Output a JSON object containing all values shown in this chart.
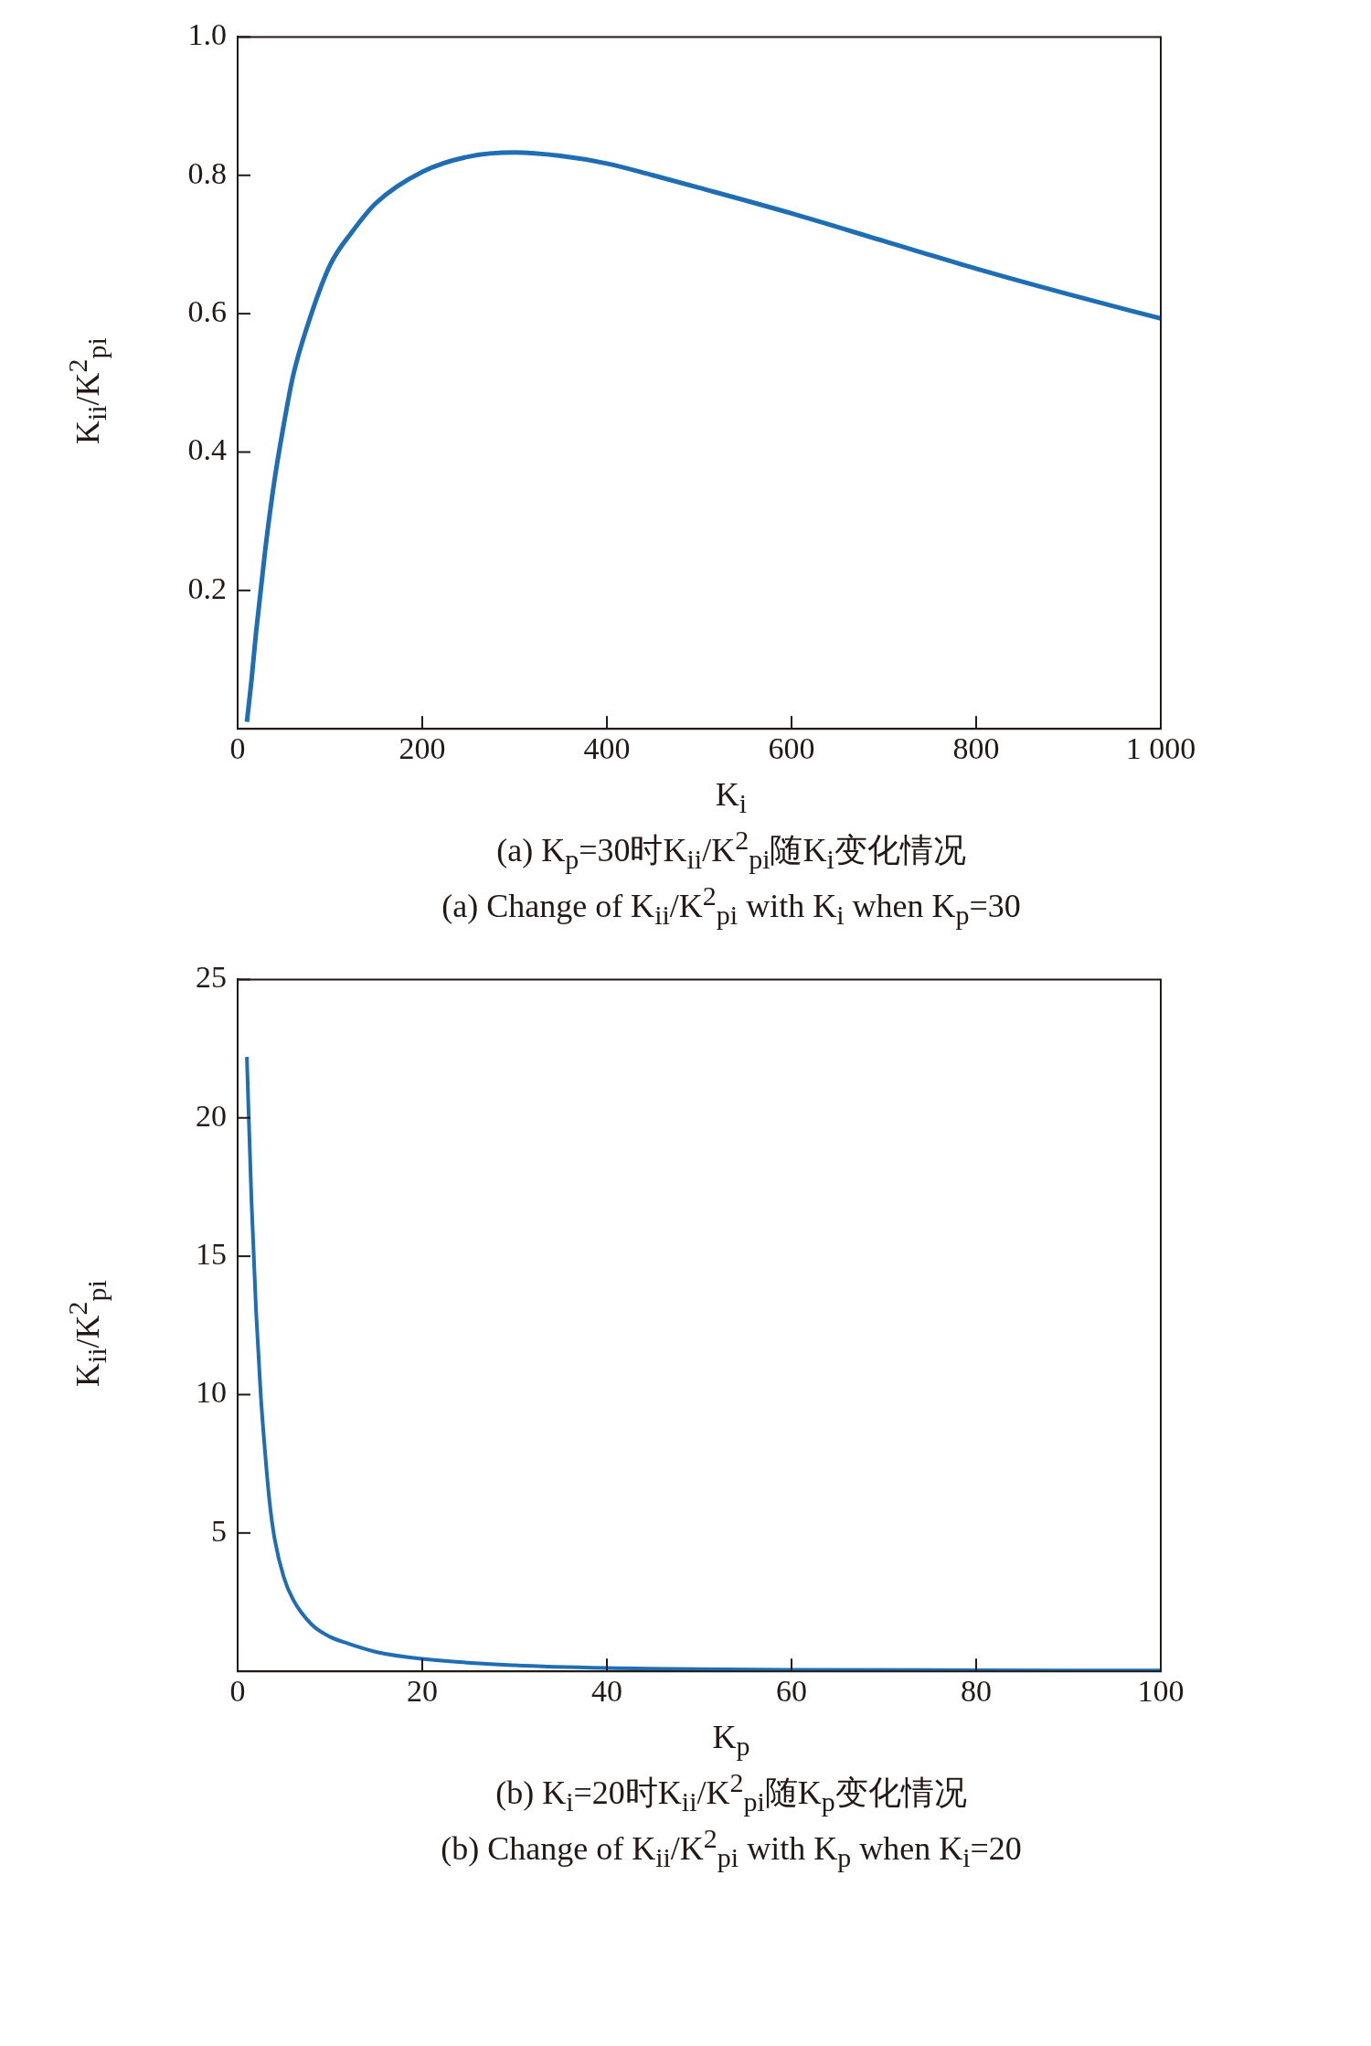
{
  "chart_data": [
    {
      "type": "line",
      "xlabel": "K$_{i}$",
      "ylabel": "K$_{ii}$/K$^{2}$$_{pi}$",
      "annotations": [
        "(a) K$_{p}$=30时K$_{ii}$/K$^{2}$$_{pi}$随K$_{i}$变化情况",
        "(a) Change of K$_{ii}$/K$^{2}$$_{pi}$ with K$_{i}$ when K$_{p}$=30"
      ],
      "series": [
        {
          "color": "#1f6db3",
          "x": [
            10,
            15,
            20,
            30,
            40,
            50,
            60,
            75,
            100,
            125,
            150,
            200,
            250,
            300,
            350,
            400,
            450,
            500,
            600,
            700,
            800,
            900,
            1000
          ],
          "values": [
            0.01,
            0.07,
            0.14,
            0.26,
            0.36,
            0.44,
            0.51,
            0.58,
            0.67,
            0.72,
            0.76,
            0.805,
            0.827,
            0.833,
            0.828,
            0.817,
            0.8,
            0.782,
            0.745,
            0.705,
            0.665,
            0.628,
            0.593
          ]
        }
      ],
      "xlim": [
        0,
        1000
      ],
      "xticks": [
        0,
        200,
        400,
        600,
        800,
        {
          "value": 1000,
          "label": "1 000"
        }
      ],
      "ylim": [
        0,
        1
      ],
      "yticks": [
        0.2,
        0.4,
        0.6,
        0.8,
        {
          "value": 1,
          "label": "1.0"
        }
      ],
      "grid": false,
      "legend": false,
      "marker": "none",
      "line_style": "solid"
    },
    {
      "type": "line",
      "xlabel": "K$_{p}$",
      "ylabel": "K$_{ii}$/K$^{2}$$_{pi}$",
      "annotations": [
        "(b) K$_{i}$=20时K$_{ii}$/K$^{2}$$_{pi}$随K$_{p}$变化情况",
        "(b) Change of K$_{ii}$/K$^{2}$$_{pi}$ with K$_{p}$ when K$_{i}$=20"
      ],
      "series": [
        {
          "color": "#1f6db3",
          "x": [
            1,
            1.5,
            2,
            2.5,
            3,
            3.5,
            4,
            5,
            6,
            8,
            10,
            12,
            15,
            20,
            30,
            40,
            60,
            80,
            100
          ],
          "values": [
            22.2,
            17,
            13,
            10,
            7.8,
            6,
            4.8,
            3.4,
            2.6,
            1.7,
            1.25,
            1.0,
            0.7,
            0.45,
            0.22,
            0.12,
            0.06,
            0.04,
            0.03
          ]
        }
      ],
      "xlim": [
        0,
        100
      ],
      "xticks": [
        0,
        20,
        40,
        60,
        80,
        100
      ],
      "ylim": [
        0,
        25
      ],
      "yticks": [
        5,
        10,
        15,
        20,
        25
      ],
      "grid": false,
      "legend": false,
      "marker": "none",
      "line_style": "solid"
    }
  ]
}
